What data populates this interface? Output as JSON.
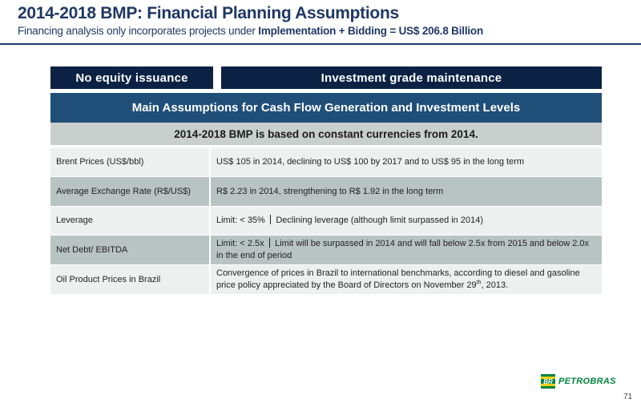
{
  "header": {
    "title": "2014-2018 BMP: Financial Planning Assumptions",
    "subtitle_prefix": "Financing analysis only incorporates projects under ",
    "subtitle_bold": "Implementation + Bidding = US$ 206.8 Billion"
  },
  "pills": {
    "left": "No equity issuance",
    "right": "Investment grade maintenance"
  },
  "table": {
    "header": "Main Assumptions for Cash Flow Generation and Investment Levels",
    "subheader": "2014-2018 BMP is based on constant currencies from 2014.",
    "rows": [
      {
        "label": "Brent Prices (US$/bbl)",
        "value": "US$ 105 in 2014, declining to US$ 100 by 2017 and to US$ 95 in the long term"
      },
      {
        "label": "Average Exchange Rate (R$/US$)",
        "value": "R$ 2.23 in 2014, strengthening to R$ 1.92 in the long term"
      },
      {
        "label": "Leverage",
        "value_a": "Limit:  < 35%",
        "value_b": "Declining leverage (although limit surpassed in 2014)"
      },
      {
        "label": "Net Debt/ EBITDA",
        "value_a": "Limit:  < 2.5x",
        "value_b": "Limit will be surpassed in 2014 and will fall below 2.5x from 2015 and below 2.0x in the end of period"
      },
      {
        "label": "Oil Product Prices in Brazil",
        "value_a": "Convergence of prices in Brazil to international benchmarks, according to diesel and gasoline price policy appreciated by the Board of Directors on November 29",
        "value_sup": "th",
        "value_b": ", 2013."
      }
    ]
  },
  "footer": {
    "logo_mark": "BR",
    "logo_text": "PETROBRAS",
    "page_number": "71"
  },
  "colors": {
    "navy": "#0b2244",
    "header_blue": "#1f4e79",
    "title_blue": "#1f3864",
    "light_row": "#eef0ef",
    "dark_row": "#b8c4c2",
    "petrobras_green": "#00843d",
    "petrobras_yellow": "#f7d117"
  }
}
